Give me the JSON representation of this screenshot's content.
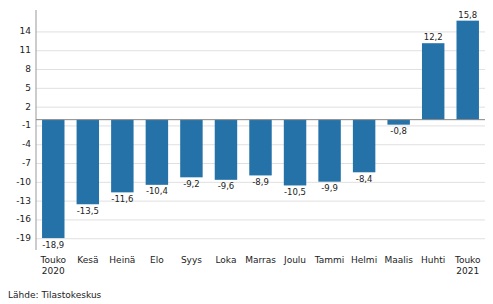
{
  "chart_data": {
    "type": "bar",
    "categories": [
      "Touko\n2020",
      "Kesä",
      "Heinä",
      "Elo",
      "Syys",
      "Loka",
      "Marras",
      "Joulu",
      "Tammi",
      "Helmi",
      "Maalis",
      "Huhti",
      "Touko\n2021"
    ],
    "values": [
      -18.9,
      -13.5,
      -11.6,
      -10.4,
      -9.2,
      -9.6,
      -8.9,
      -10.5,
      -9.9,
      -8.4,
      -0.8,
      12.2,
      15.8
    ],
    "value_labels": [
      "-18,9",
      "-13,5",
      "-11,6",
      "-10,4",
      "-9,2",
      "-9,6",
      "-8,9",
      "-10,5",
      "-9,9",
      "-8,4",
      "-0,8",
      "12,2",
      "15,8"
    ],
    "data_labels": true,
    "color": "#2472a8",
    "ylim": [
      -20.8,
      17.5
    ],
    "yticks": [
      -19,
      -16,
      -13,
      -10,
      -7,
      -4,
      -1,
      2,
      5,
      8,
      11,
      14
    ],
    "grid": true,
    "annotations": [
      "Lähde: Tilastokeskus"
    ]
  }
}
